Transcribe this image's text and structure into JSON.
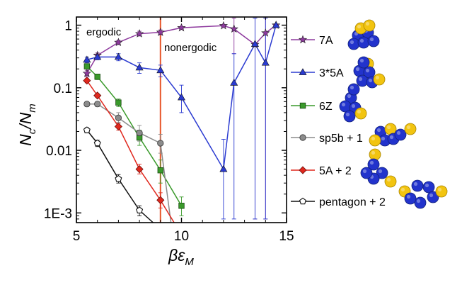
{
  "chart_data": {
    "type": "line",
    "title": "",
    "xlabel": "βε",
    "xlabel_sub": "M",
    "ylabel": "N",
    "ylabel_sub_c": "c",
    "ylabel_mid": "/N",
    "ylabel_sub_m": "m",
    "y_scale": "log",
    "xlim": [
      5,
      15
    ],
    "ylim": [
      0.0007,
      1.35
    ],
    "x_ticks": [
      5,
      10,
      15
    ],
    "x_tick_labels": [
      "5",
      "10",
      "15"
    ],
    "y_ticks": [
      0.001,
      0.01,
      0.1,
      1
    ],
    "y_tick_labels": [
      "1E-3",
      "0.01",
      "0.1",
      "1"
    ],
    "annotations": [
      "ergodic",
      "nonergodic"
    ],
    "vline_x": 9,
    "vline_color": "#e8562a",
    "legend_position": "right, outside plot",
    "series": [
      {
        "name": "7A",
        "color": "#8e3a9e",
        "marker": "star",
        "x": [
          5.5,
          6,
          7,
          8,
          9,
          10,
          12,
          12.5,
          13.5,
          14,
          14.5
        ],
        "y": [
          0.17,
          0.33,
          0.53,
          0.73,
          0.77,
          0.91,
          0.98,
          0.87,
          0.49,
          0.75,
          1.0
        ],
        "err_low": [
          0.15,
          0.3,
          0.49,
          0.67,
          0.7,
          0.87,
          0.95,
          0.35,
          0.0008,
          0.0008,
          0.95
        ],
        "err_high": [
          0.19,
          0.36,
          0.57,
          0.8,
          0.84,
          0.95,
          1.02,
          1.3,
          1.3,
          1.3,
          1.03
        ]
      },
      {
        "name": "3*5A",
        "color": "#2b3bd1",
        "marker": "triangle",
        "x": [
          5.5,
          6,
          7,
          8,
          9,
          10,
          12,
          12.5,
          13.5,
          14,
          14.5
        ],
        "y": [
          0.28,
          0.31,
          0.31,
          0.21,
          0.19,
          0.07,
          0.005,
          0.12,
          0.5,
          0.25,
          1.0
        ],
        "err_low": [
          0.25,
          0.28,
          0.27,
          0.17,
          0.15,
          0.04,
          0.0008,
          0.0008,
          0.0008,
          0.0008,
          0.95
        ],
        "err_high": [
          0.31,
          0.34,
          0.35,
          0.25,
          0.23,
          0.11,
          0.015,
          0.35,
          1.3,
          1.3,
          1.03
        ]
      },
      {
        "name": "6Z",
        "color": "#3a9a2b",
        "marker": "square",
        "x": [
          5.5,
          6,
          7,
          8,
          9,
          10
        ],
        "y": [
          0.22,
          0.15,
          0.058,
          0.016,
          0.0048,
          0.0013
        ],
        "err_low": [
          0.2,
          0.135,
          0.05,
          0.012,
          0.003,
          0.0009
        ],
        "err_high": [
          0.24,
          0.165,
          0.066,
          0.021,
          0.007,
          0.0018
        ]
      },
      {
        "name": "sp5b + 1",
        "color": "#8c8c8c",
        "marker": "circle",
        "x": [
          5.5,
          6,
          7,
          8,
          9,
          9.5
        ],
        "y": [
          0.055,
          0.055,
          0.033,
          0.019,
          0.013,
          0.0007
        ],
        "err_low": [
          0.05,
          0.05,
          0.028,
          0.014,
          0.009,
          0.0007
        ],
        "err_high": [
          0.06,
          0.06,
          0.04,
          0.025,
          0.018,
          0.0007
        ]
      },
      {
        "name": "5A + 2",
        "color": "#e0281e",
        "marker": "diamond",
        "x": [
          5.5,
          6,
          7,
          8,
          9,
          9.65
        ],
        "y": [
          0.13,
          0.075,
          0.024,
          0.005,
          0.0016,
          0.0007
        ],
        "err_low": [
          0.12,
          0.07,
          0.021,
          0.0042,
          0.0012,
          0.0007
        ],
        "err_high": [
          0.14,
          0.08,
          0.027,
          0.006,
          0.0021,
          0.0007
        ]
      },
      {
        "name": "pentagon + 2",
        "color": "#111111",
        "marker": "pentagon",
        "x": [
          5.5,
          6,
          7,
          8,
          8.65
        ],
        "y": [
          0.021,
          0.013,
          0.0035,
          0.0011,
          0.0007
        ],
        "err_low": [
          0.019,
          0.0115,
          0.003,
          0.0009,
          0.0007
        ],
        "err_high": [
          0.023,
          0.0145,
          0.0041,
          0.0013,
          0.0007
        ]
      }
    ]
  }
}
